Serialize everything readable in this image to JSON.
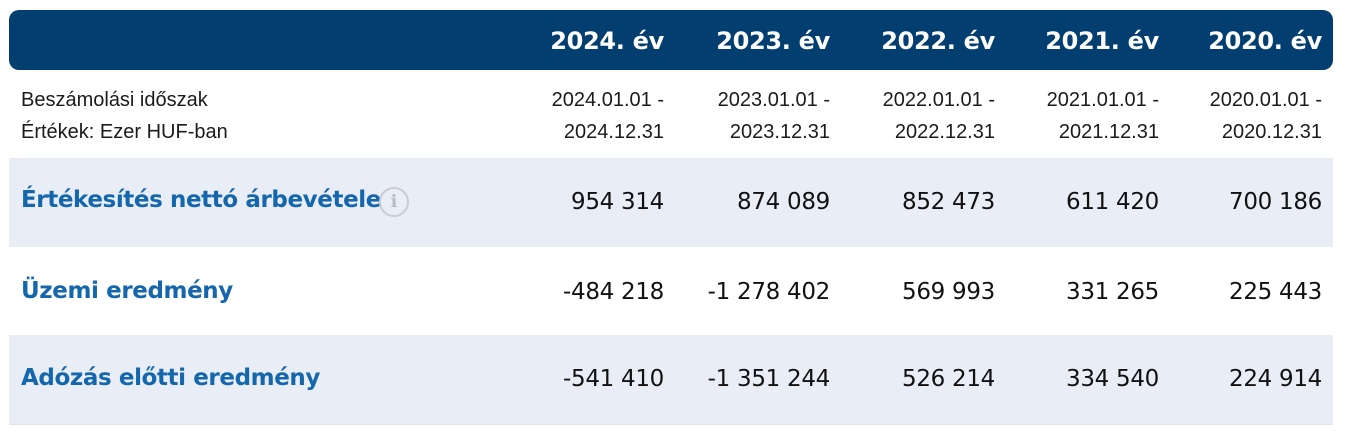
{
  "header": {
    "years": [
      "2024. év",
      "2023. év",
      "2022. év",
      "2021. év",
      "2020. év"
    ]
  },
  "periods": {
    "label_line1": "Beszámolási időszak",
    "label_line2": "Értékek: Ezer HUF-ban",
    "items": [
      {
        "from": "2024.01.01 -",
        "to": "2024.12.31"
      },
      {
        "from": "2023.01.01 -",
        "to": "2023.12.31"
      },
      {
        "from": "2022.01.01 -",
        "to": "2022.12.31"
      },
      {
        "from": "2021.01.01 -",
        "to": "2021.12.31"
      },
      {
        "from": "2020.01.01 -",
        "to": "2020.12.31"
      }
    ]
  },
  "rows": [
    {
      "label": "Értékesítés nettó árbevétele",
      "icon": "info-icon",
      "values": [
        "954 314",
        "874 089",
        "852 473",
        "611 420",
        "700 186"
      ]
    },
    {
      "label": "Üzemi eredmény",
      "values": [
        "-484 218",
        "-1 278 402",
        "569 993",
        "331 265",
        "225 443"
      ]
    },
    {
      "label": "Adózás előtti eredmény",
      "values": [
        "-541 410",
        "-1 351 244",
        "526 214",
        "334 540",
        "224 914"
      ]
    }
  ],
  "colors": {
    "header_bg": "#033e71",
    "label_blue": "#1466ad",
    "row_shade": "#e9edf5"
  }
}
